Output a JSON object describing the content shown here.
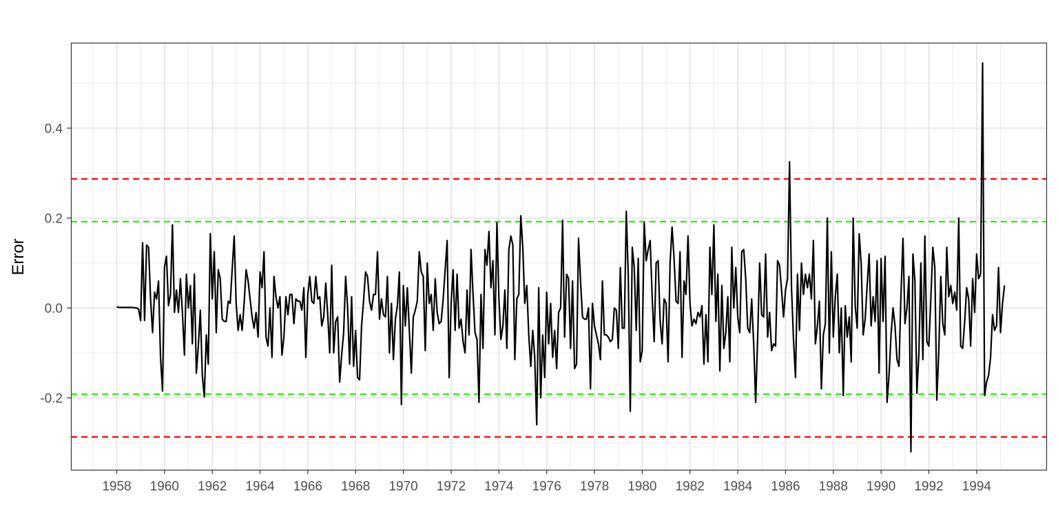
{
  "chart_data": {
    "type": "line",
    "title": "",
    "xlabel": "",
    "ylabel": "Error",
    "xlim": [
      "1956-02",
      "1996-12"
    ],
    "ylim": [
      -0.36,
      0.59
    ],
    "x_ticks": [
      "1958",
      "1960",
      "1962",
      "1964",
      "1966",
      "1968",
      "1970",
      "1972",
      "1974",
      "1976",
      "1978",
      "1980",
      "1982",
      "1984",
      "1986",
      "1988",
      "1990",
      "1992",
      "1994"
    ],
    "y_ticks": [
      -0.2,
      0.0,
      0.2,
      0.4
    ],
    "y_tick_labels": [
      "-0.2",
      "0.0",
      "0.2",
      "0.4"
    ],
    "grid": true,
    "theme": "bw",
    "reference_lines": [
      {
        "y": 0.287,
        "color": "#ff0000",
        "style": "dashed"
      },
      {
        "y": 0.192,
        "color": "#22ee00",
        "style": "dashed"
      },
      {
        "y": -0.192,
        "color": "#22ee00",
        "style": "dashed"
      },
      {
        "y": -0.287,
        "color": "#ff0000",
        "style": "dashed"
      }
    ],
    "series": [
      {
        "color": "#000000",
        "start": "1958-01",
        "frequency": "monthly",
        "values": [
          0.003,
          0.001,
          0.001,
          0.001,
          0.001,
          0.001,
          0.001,
          0.001,
          0.001,
          0.0,
          0.0,
          -0.003,
          -0.028,
          0.145,
          -0.028,
          0.14,
          0.135,
          0.02,
          -0.055,
          0.035,
          0.02,
          0.06,
          -0.11,
          -0.185,
          0.09,
          0.115,
          0.005,
          0.03,
          0.185,
          -0.01,
          0.04,
          -0.01,
          0.065,
          -0.01,
          -0.105,
          0.075,
          0.0,
          0.05,
          -0.08,
          0.075,
          -0.145,
          -0.085,
          -0.005,
          -0.15,
          -0.198,
          -0.06,
          -0.125,
          0.165,
          0.02,
          0.125,
          -0.055,
          0.085,
          0.065,
          -0.025,
          -0.03,
          -0.03,
          0.015,
          0.01,
          0.085,
          0.16,
          0.01,
          -0.05,
          -0.015,
          -0.05,
          0.01,
          0.085,
          0.06,
          0.02,
          -0.02,
          -0.045,
          -0.01,
          -0.065,
          0.08,
          0.045,
          0.125,
          -0.065,
          -0.085,
          0.0,
          -0.11,
          0.07,
          0.025,
          0.0,
          0.025,
          -0.105,
          -0.065,
          0.025,
          -0.015,
          0.03,
          0.03,
          -0.035,
          0.02,
          0.015,
          0.015,
          -0.005,
          0.045,
          -0.11,
          0.03,
          0.07,
          0.015,
          0.01,
          0.07,
          0.02,
          0.025,
          -0.04,
          -0.02,
          0.055,
          -0.015,
          -0.1,
          0.095,
          -0.1,
          -0.03,
          -0.02,
          -0.165,
          -0.105,
          -0.055,
          0.07,
          0.0,
          -0.125,
          0.025,
          -0.13,
          -0.05,
          -0.155,
          -0.16,
          -0.04,
          0.015,
          0.08,
          0.07,
          0.015,
          -0.005,
          0.03,
          0.03,
          0.125,
          -0.025,
          0.02,
          -0.015,
          -0.02,
          0.07,
          -0.1,
          0.01,
          -0.115,
          -0.025,
          0.005,
          0.08,
          -0.215,
          0.05,
          -0.04,
          0.045,
          -0.05,
          -0.145,
          -0.02,
          -0.005,
          0.015,
          0.125,
          0.08,
          0.07,
          -0.095,
          0.1,
          0.01,
          0.03,
          -0.05,
          0.065,
          -0.01,
          -0.035,
          -0.03,
          0.02,
          0.085,
          0.15,
          -0.155,
          0.01,
          0.085,
          -0.05,
          0.075,
          -0.045,
          -0.025,
          -0.075,
          -0.1,
          0.04,
          -0.06,
          0.13,
          0.03,
          -0.055,
          -0.07,
          -0.21,
          0.03,
          -0.09,
          0.13,
          0.095,
          0.17,
          0.045,
          0.105,
          -0.06,
          0.19,
          0.02,
          -0.07,
          -0.04,
          0.04,
          -0.09,
          0.13,
          0.16,
          0.14,
          -0.115,
          0.02,
          0.03,
          0.205,
          0.135,
          0.01,
          0.05,
          -0.06,
          -0.13,
          -0.05,
          -0.11,
          -0.26,
          0.045,
          -0.2,
          -0.06,
          -0.155,
          0.035,
          -0.08,
          0.01,
          -0.11,
          -0.05,
          -0.135,
          -0.01,
          0.0,
          0.195,
          -0.065,
          0.075,
          0.065,
          -0.09,
          0.06,
          -0.135,
          -0.125,
          0.155,
          0.06,
          -0.02,
          -0.025,
          -0.025,
          0.0,
          -0.18,
          0.01,
          -0.04,
          -0.06,
          -0.08,
          -0.115,
          0.06,
          -0.06,
          -0.06,
          -0.065,
          -0.075,
          -0.07,
          0.0,
          -0.005,
          -0.09,
          0.09,
          -0.045,
          -0.045,
          0.215,
          0.07,
          -0.23,
          0.135,
          0.09,
          -0.05,
          0.11,
          -0.12,
          -0.095,
          0.19,
          0.105,
          0.13,
          0.15,
          0.025,
          -0.075,
          0.1,
          0.105,
          -0.03,
          -0.08,
          0.02,
          0.01,
          -0.12,
          0.1,
          0.18,
          0.11,
          0.015,
          0.01,
          0.125,
          -0.11,
          0.06,
          0.03,
          0.16,
          0.01,
          -0.04,
          -0.025,
          -0.035,
          -0.01,
          -0.02,
          0.005,
          -0.125,
          -0.015,
          -0.12,
          0.135,
          0.03,
          0.185,
          -0.03,
          0.075,
          -0.14,
          0.05,
          -0.09,
          -0.055,
          0.025,
          -0.12,
          0.135,
          0.0,
          0.09,
          -0.02,
          -0.055,
          0.125,
          0.13,
          0.065,
          -0.045,
          -0.055,
          0.02,
          -0.08,
          -0.21,
          -0.065,
          0.1,
          -0.015,
          -0.02,
          0.12,
          -0.065,
          -0.01,
          -0.095,
          -0.08,
          -0.085,
          0.105,
          0.095,
          0.04,
          -0.02,
          0.04,
          0.065,
          0.325,
          0.045,
          -0.07,
          -0.155,
          0.075,
          -0.05,
          0.1,
          0.03,
          0.075,
          0.045,
          0.075,
          0.02,
          0.15,
          -0.08,
          -0.04,
          0.015,
          -0.18,
          -0.06,
          -0.035,
          0.2,
          -0.1,
          0.125,
          -0.065,
          0.025,
          0.075,
          -0.1,
          0.0,
          -0.195,
          0.005,
          -0.065,
          -0.02,
          -0.12,
          0.2,
          0.005,
          -0.045,
          0.165,
          0.1,
          -0.06,
          -0.025,
          0.05,
          0.12,
          -0.04,
          0.025,
          -0.03,
          0.105,
          -0.145,
          0.11,
          -0.03,
          0.115,
          -0.21,
          -0.15,
          -0.06,
          0.0,
          -0.04,
          -0.115,
          -0.13,
          0.03,
          0.155,
          -0.035,
          0.0,
          0.07,
          -0.32,
          0.12,
          0.06,
          -0.19,
          -0.1,
          0.1,
          -0.115,
          0.16,
          -0.075,
          -0.085,
          0.02,
          0.135,
          0.09,
          -0.205,
          -0.095,
          0.07,
          -0.035,
          -0.06,
          0.135,
          0.025,
          0.05,
          0.01,
          0.035,
          -0.005,
          0.2,
          -0.085,
          -0.09,
          -0.03,
          0.045,
          0.02,
          -0.085,
          0.065,
          -0.01,
          0.12,
          0.065,
          0.075,
          0.545,
          -0.195,
          -0.165,
          -0.15,
          -0.11,
          -0.015,
          -0.05,
          -0.04,
          0.09,
          -0.055,
          0.01,
          0.05
        ]
      }
    ]
  }
}
